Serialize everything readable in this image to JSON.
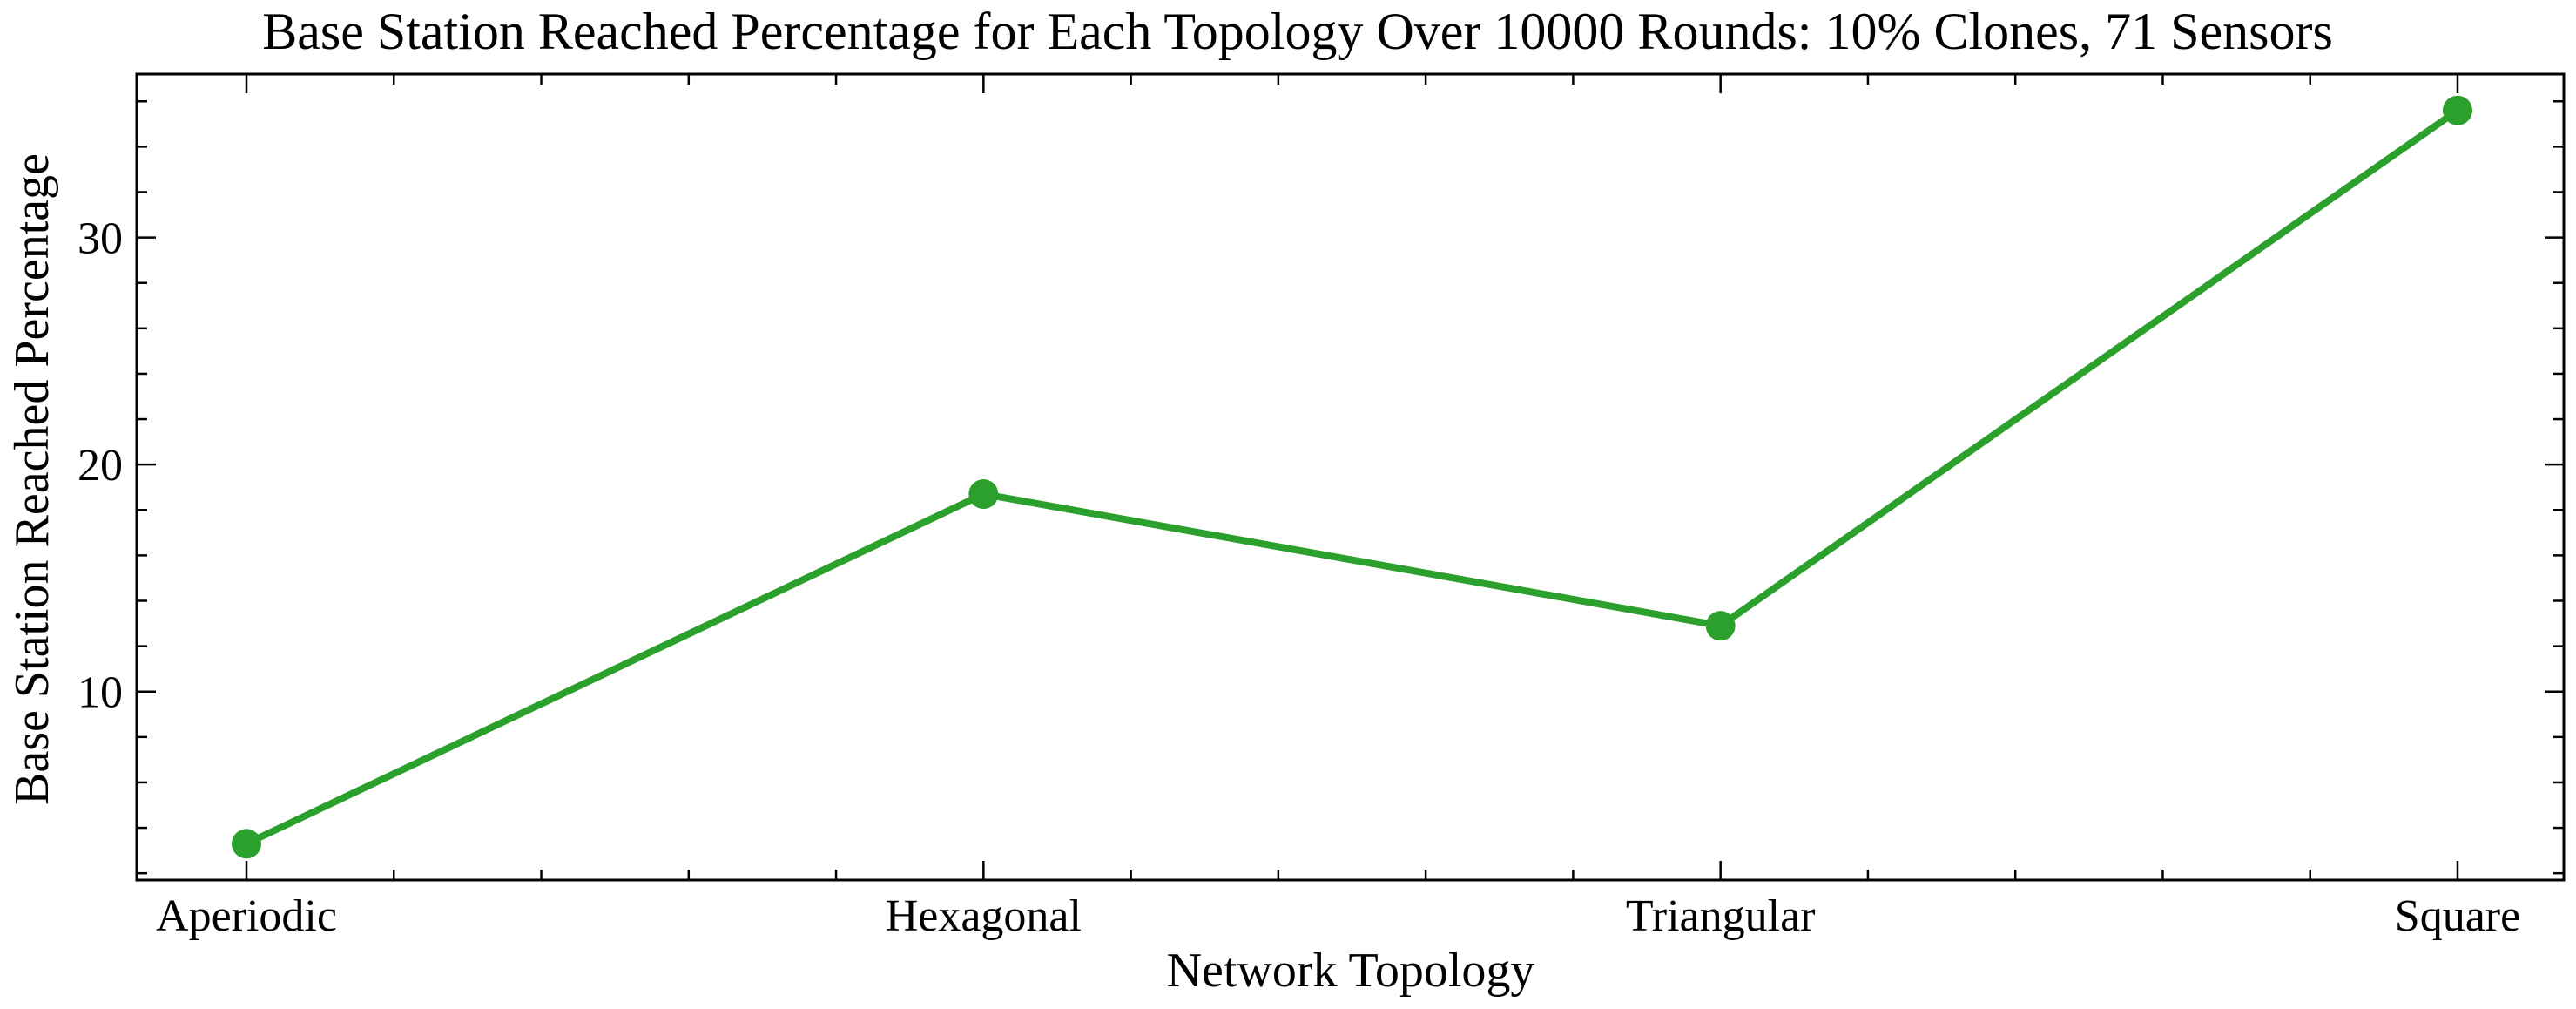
{
  "chart_data": {
    "type": "line",
    "title": "Base Station Reached Percentage for Each Topology Over 10000 Rounds: 10% Clones, 71 Sensors",
    "xlabel": "Network Topology",
    "ylabel": "Base Station Reached Percentage",
    "categories": [
      "Aperiodic",
      "Hexagonal",
      "Triangular",
      "Square"
    ],
    "series": [
      {
        "values": [
          3.3,
          18.7,
          12.9,
          35.6
        ],
        "color": "#2ca02c"
      }
    ],
    "ylim": [
      1.7,
      37.2
    ],
    "yticks": [
      10,
      20,
      30
    ],
    "ytick_labels": [
      "10",
      "20",
      "30"
    ],
    "y_minor_step": 2,
    "grid": false,
    "legend": "none"
  }
}
